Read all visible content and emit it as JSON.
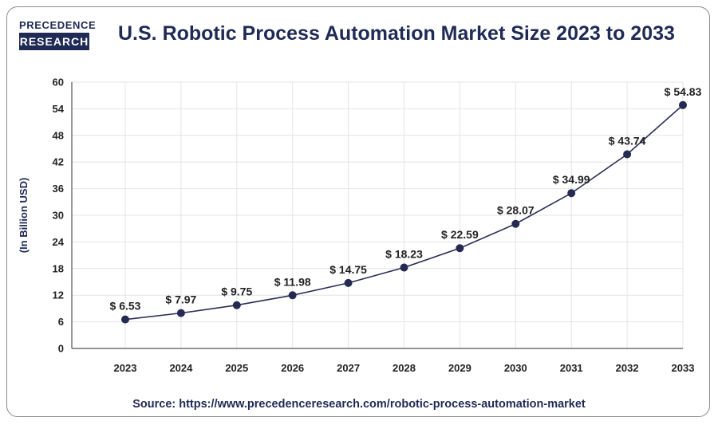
{
  "logo": {
    "line1": "PRECEDENCE",
    "line2": "RESEARCH"
  },
  "title": "U.S. Robotic Process Automation Market Size 2023 to 2033",
  "source": "Source: https://www.precedenceresearch.com/robotic-process-automation-market",
  "colors": {
    "line": "#2b2f55",
    "marker": "#252a52",
    "grid": "#e4e4e4",
    "title": "#1f2a55"
  },
  "chart_data": {
    "type": "line",
    "title": "U.S. Robotic Process Automation Market Size 2023 to 2033",
    "xlabel": "",
    "ylabel": "(In Billion USD)",
    "categories": [
      "2023",
      "2024",
      "2025",
      "2026",
      "2027",
      "2028",
      "2029",
      "2030",
      "2031",
      "2032",
      "2033"
    ],
    "values": [
      6.53,
      7.97,
      9.75,
      11.98,
      14.75,
      18.23,
      22.59,
      28.07,
      34.99,
      43.74,
      54.83
    ],
    "data_labels": [
      "$ 6.53",
      "$ 7.97",
      "$ 9.75",
      "$ 11.98",
      "$ 14.75",
      "$ 18.23",
      "$ 22.59",
      "$ 28.07",
      "$ 34.99",
      "$ 43.74",
      "$ 54.83"
    ],
    "yticks": [
      0,
      6,
      12,
      18,
      24,
      30,
      36,
      42,
      48,
      54,
      60
    ],
    "ylim": [
      0,
      60
    ],
    "grid": true,
    "legend": "none"
  }
}
